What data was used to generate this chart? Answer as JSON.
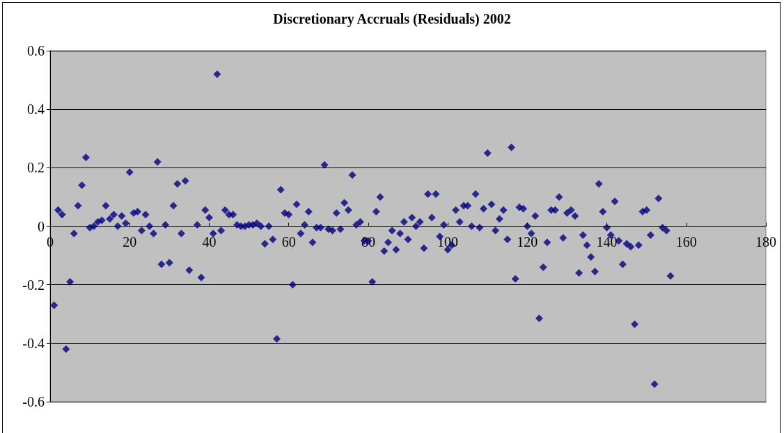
{
  "chart_data": {
    "type": "scatter",
    "title": "Discretionary Accruals (Residuals) 2002",
    "x": [
      1,
      2,
      3,
      4,
      5,
      6,
      7,
      8,
      9,
      10,
      11,
      12,
      13,
      14,
      15,
      16,
      17,
      18,
      19,
      20,
      21,
      22,
      23,
      24,
      25,
      26,
      27,
      28,
      29,
      30,
      31,
      32,
      33,
      34,
      35,
      37,
      38,
      39,
      40,
      41,
      42,
      43,
      44,
      45,
      46,
      47,
      48,
      49,
      50,
      51,
      52,
      53,
      54,
      55,
      56,
      57,
      58,
      59,
      60,
      61,
      62,
      63,
      64,
      65,
      66,
      67,
      68,
      69,
      70,
      71,
      72,
      73,
      74,
      75,
      76,
      77,
      78,
      79,
      80,
      81,
      82,
      83,
      84,
      85,
      86,
      87,
      88,
      89,
      90,
      91,
      92,
      93,
      94,
      95,
      96,
      97,
      98,
      99,
      100,
      101,
      102,
      103,
      104,
      105,
      106,
      107,
      108,
      109,
      110,
      111,
      112,
      113,
      114,
      115,
      116,
      117,
      118,
      119,
      120,
      121,
      122,
      123,
      124,
      125,
      126,
      127,
      128,
      129,
      130,
      131,
      132,
      133,
      134,
      135,
      136,
      137,
      138,
      139,
      140,
      141,
      142,
      143,
      144,
      145,
      146,
      147,
      148,
      149,
      150,
      151,
      152,
      153,
      154,
      155,
      156
    ],
    "values": [
      -0.27,
      0.055,
      0.04,
      -0.42,
      -0.19,
      -0.025,
      0.07,
      0.14,
      0.235,
      -0.005,
      0.0,
      0.015,
      0.02,
      0.07,
      0.025,
      0.04,
      0.0,
      0.035,
      0.01,
      0.185,
      0.045,
      0.05,
      -0.015,
      0.04,
      0.0,
      -0.025,
      0.22,
      -0.13,
      0.005,
      -0.125,
      0.07,
      0.145,
      -0.025,
      0.155,
      -0.15,
      0.005,
      -0.175,
      0.055,
      0.03,
      -0.025,
      0.52,
      -0.015,
      0.055,
      0.04,
      0.04,
      0.005,
      0.0,
      0.0,
      0.005,
      0.005,
      0.01,
      0.0,
      -0.06,
      0.0,
      -0.045,
      -0.385,
      0.125,
      0.045,
      0.04,
      -0.2,
      0.075,
      -0.025,
      0.005,
      0.05,
      -0.055,
      -0.005,
      -0.005,
      0.21,
      -0.01,
      -0.015,
      0.045,
      -0.01,
      0.08,
      0.055,
      0.175,
      0.005,
      0.015,
      -0.05,
      -0.05,
      -0.19,
      0.05,
      0.1,
      -0.085,
      -0.055,
      -0.015,
      -0.08,
      -0.025,
      0.015,
      -0.045,
      0.03,
      0.0,
      0.015,
      -0.075,
      0.11,
      0.03,
      0.11,
      -0.035,
      0.005,
      -0.08,
      -0.065,
      0.055,
      0.015,
      0.07,
      0.07,
      0.0,
      0.11,
      -0.005,
      0.06,
      0.25,
      0.075,
      -0.015,
      0.025,
      0.055,
      -0.045,
      0.27,
      -0.18,
      0.065,
      0.06,
      0.0,
      -0.025,
      0.035,
      -0.315,
      -0.14,
      -0.055,
      0.055,
      0.055,
      0.1,
      -0.04,
      0.045,
      0.055,
      0.035,
      -0.16,
      -0.03,
      -0.065,
      -0.105,
      -0.155,
      0.145,
      0.05,
      -0.005,
      -0.03,
      0.085,
      -0.05,
      -0.13,
      -0.06,
      -0.07,
      -0.335,
      -0.065,
      0.05,
      0.055,
      -0.03,
      -0.54,
      0.095,
      -0.005,
      -0.015,
      -0.17
    ],
    "color": "#000080",
    "marker": "diamond",
    "xlim": [
      0,
      180
    ],
    "xticks": [
      0,
      20,
      40,
      60,
      80,
      100,
      120,
      140,
      160,
      180
    ],
    "ylim": [
      -0.6,
      0.6
    ],
    "yticks": [
      -0.6,
      -0.4,
      -0.2,
      0,
      0.2,
      0.4,
      0.6
    ],
    "grid": "y"
  }
}
